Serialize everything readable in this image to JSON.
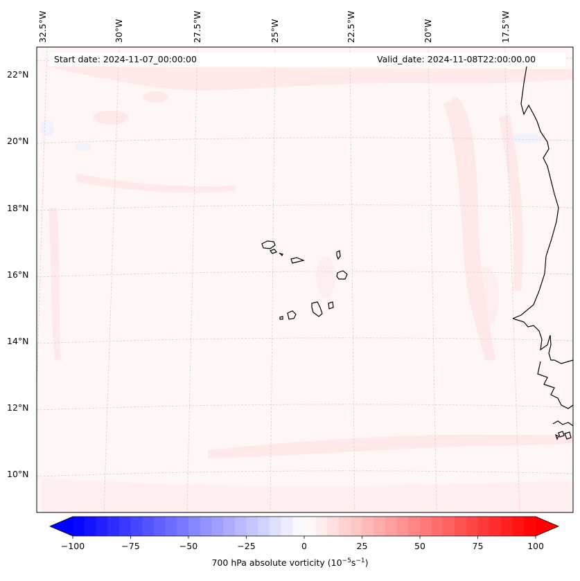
{
  "header": {
    "start_date": "Start date: 2024-11-07_00:00:00",
    "valid_date": "Valid_date: 2024-11-08T22:00:00.00"
  },
  "map": {
    "projection": "lambert-conformal",
    "lon_range": [
      -33.5,
      -15.8
    ],
    "lat_range": [
      8.9,
      22.8
    ],
    "gridlines": "dashed, light gray",
    "lon_ticks": [
      "32.5°W",
      "30°W",
      "27.5°W",
      "25°W",
      "22.5°W",
      "20°W",
      "17.5°W"
    ],
    "lat_ticks": [
      "10°N",
      "12°N",
      "14°N",
      "16°N",
      "18°N",
      "20°N",
      "22°N"
    ],
    "features": [
      "Cape Verde islands",
      "West African coastline (Mauritania, Senegal, Gambia, Guinea-Bissau)"
    ],
    "field": "weak positive vorticity, mostly 0–10 (×10⁻⁵ s⁻¹), faint red streaks"
  },
  "colorbar": {
    "min": -100,
    "max": 100,
    "colormap": "bwr",
    "extend": "both",
    "ticks": [
      "−100",
      "−75",
      "−50",
      "−25",
      "0",
      "25",
      "50",
      "75",
      "100"
    ],
    "label_main": "700 hPa absolute vorticity (10",
    "label_exp1": "−5",
    "label_mid": "s",
    "label_exp2": "−1",
    "label_end": ")"
  }
}
